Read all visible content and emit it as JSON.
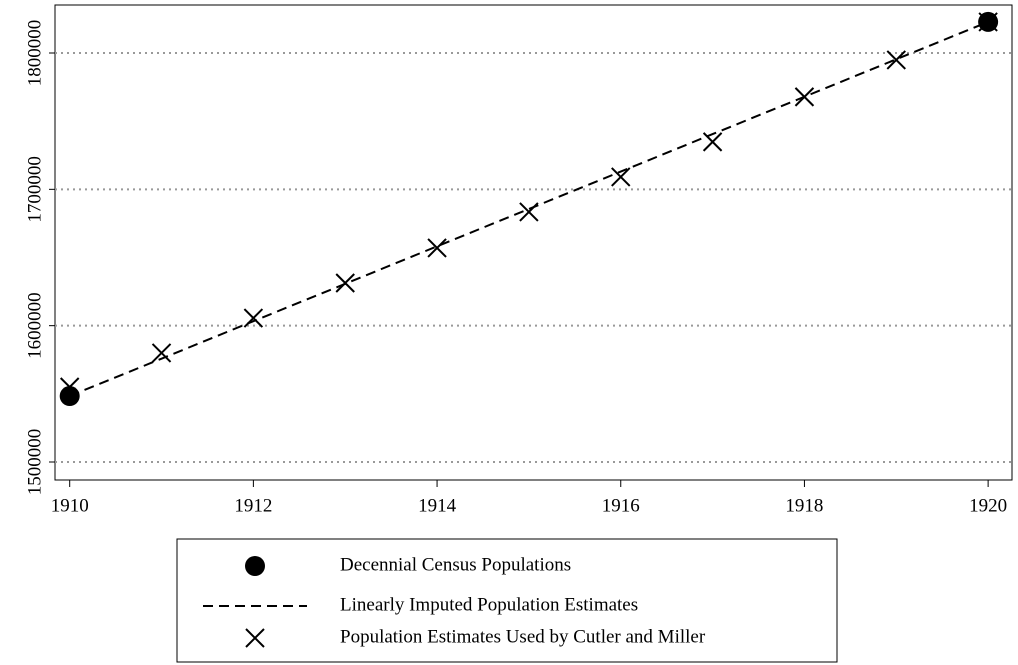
{
  "chart_data": {
    "type": "line",
    "x": [
      1910,
      1911,
      1912,
      1913,
      1914,
      1915,
      1916,
      1917,
      1918,
      1919,
      1920
    ],
    "series": [
      {
        "name": "Decennial Census Populations",
        "color": "#000000",
        "marker": "circle",
        "line": "none",
        "values": [
          1548400,
          null,
          null,
          null,
          null,
          null,
          null,
          null,
          null,
          null,
          1822800
        ]
      },
      {
        "name": "Linearly Imputed Population Estimates",
        "color": "#000000",
        "marker": "none",
        "line": "dashed",
        "values": [
          1548400,
          1575800,
          1603300,
          1630700,
          1658200,
          1685600,
          1713000,
          1740500,
          1767900,
          1795400,
          1822800
        ]
      },
      {
        "name": "Population Estimates Used by Cutler and Miller",
        "color": "#000000",
        "marker": "x",
        "line": "none",
        "values": [
          1555000,
          1580000,
          1605600,
          1631300,
          1657000,
          1683400,
          1709100,
          1734800,
          1767800,
          1794900,
          1822800
        ]
      }
    ],
    "xlim": [
      1909.84,
      1920.26
    ],
    "xticks": [
      1910,
      1912,
      1914,
      1916,
      1918,
      1920
    ],
    "ylim": [
      1486800,
      1835200
    ],
    "yticks": [
      1500000,
      1600000,
      1700000,
      1800000
    ],
    "grid": true,
    "legend": "bottom"
  }
}
